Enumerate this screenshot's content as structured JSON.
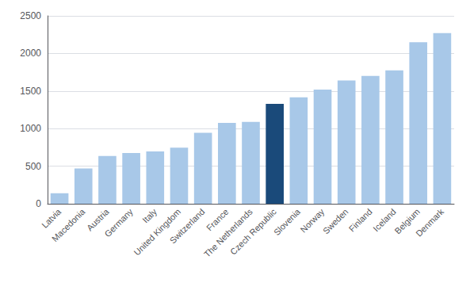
{
  "chart_data": {
    "type": "bar",
    "categories": [
      "Latvia",
      "Macedonia",
      "Austria",
      "Germany",
      "Italy",
      "United Kingdom",
      "Switzerland",
      "France",
      "The Netherlands",
      "Czech Republic",
      "Slovenia",
      "Norway",
      "Sweden",
      "Finland",
      "Iceland",
      "Belgium",
      "Denmark"
    ],
    "values": [
      140,
      470,
      635,
      675,
      695,
      745,
      945,
      1075,
      1090,
      1330,
      1415,
      1520,
      1640,
      1700,
      1775,
      2150,
      2270
    ],
    "colors": [
      "#a8c8e8",
      "#a8c8e8",
      "#a8c8e8",
      "#a8c8e8",
      "#a8c8e8",
      "#a8c8e8",
      "#a8c8e8",
      "#a8c8e8",
      "#a8c8e8",
      "#1a4a7a",
      "#a8c8e8",
      "#a8c8e8",
      "#a8c8e8",
      "#a8c8e8",
      "#a8c8e8",
      "#a8c8e8",
      "#a8c8e8"
    ],
    "ylim": [
      0,
      2500
    ],
    "yticks": [
      0,
      500,
      1000,
      1500,
      2000,
      2500
    ],
    "grid": true
  }
}
